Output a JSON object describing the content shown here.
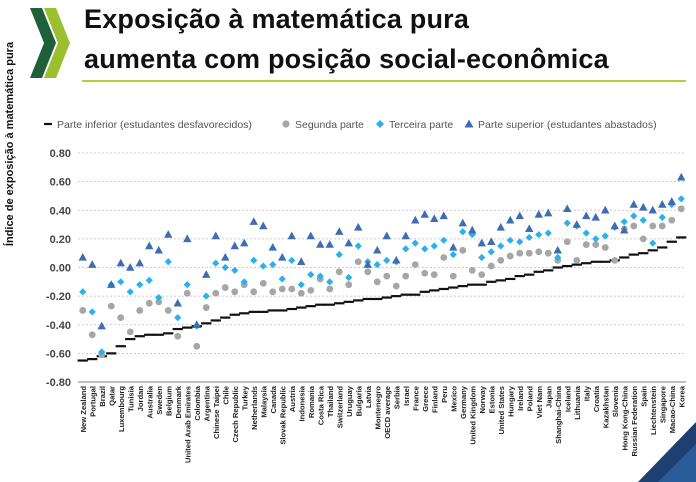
{
  "slide": {
    "title_line1": "Exposição à matemática pura",
    "title_line2": "aumenta com posição social-econômica",
    "accent_color": "#b9cf3a",
    "logo_icon": "oecd-chevrons-icon"
  },
  "chart_data": {
    "type": "scatter",
    "title": "Exposição à matemática pura aumenta com posição social-econômica",
    "xlabel": "",
    "ylabel": "Índice de exposição à matemática pura",
    "ylim": [
      -0.8,
      0.8
    ],
    "yticks": [
      "0.80",
      "0.60",
      "0.40",
      "0.20",
      "0.00",
      "-0.20",
      "-0.40",
      "-0.60",
      "-0.80"
    ],
    "grid": true,
    "legend": [
      {
        "name": "Parte inferior (estudantes desfavorecidos)",
        "marker": "dash",
        "color": "#111111"
      },
      {
        "name": "Segunda parte",
        "marker": "circle",
        "color": "#a6a6a6"
      },
      {
        "name": "Terceira parte",
        "marker": "diamond",
        "color": "#2ab0ec"
      },
      {
        "name": "Parte superior (estudantes abastados)",
        "marker": "triangle",
        "color": "#3e6db2"
      }
    ],
    "categories": [
      "New Zealand",
      "Portugal",
      "Brazil",
      "Qatar",
      "Luxembourg",
      "Tunisia",
      "Jordan",
      "Australia",
      "Sweden",
      "Belgium",
      "Denmark",
      "United Arab Emirates",
      "Colombia",
      "Argentina",
      "Chinese Taipei",
      "Chile",
      "Czech Republic",
      "Turkey",
      "Netherlands",
      "Malaysia",
      "Canada",
      "Slovak Republic",
      "Austria",
      "Indonesia",
      "Romania",
      "Costa Rica",
      "Thailand",
      "Switzerland",
      "Uruguay",
      "Bulgaria",
      "Latvia",
      "Montenegro",
      "OECD average",
      "Serbia",
      "Israel",
      "France",
      "Greece",
      "Finland",
      "Peru",
      "Mexico",
      "Germany",
      "United Kingdom",
      "Norway",
      "Estonia",
      "United States",
      "Hungary",
      "Ireland",
      "Poland",
      "Viet Nam",
      "Japan",
      "Shanghai-China",
      "Iceland",
      "Lithuania",
      "Italy",
      "Croatia",
      "Kazakhstan",
      "Slovenia",
      "Hong Kong-China",
      "Russian Federation",
      "Spain",
      "Liechtenstein",
      "Singapore",
      "Macao-China",
      "Korea"
    ],
    "series": [
      {
        "name": "Parte inferior (estudantes desfavorecidos)",
        "values": [
          -0.65,
          -0.64,
          -0.62,
          -0.6,
          -0.55,
          -0.5,
          -0.48,
          -0.47,
          -0.47,
          -0.46,
          -0.43,
          -0.42,
          -0.41,
          -0.39,
          -0.37,
          -0.35,
          -0.33,
          -0.32,
          -0.31,
          -0.31,
          -0.3,
          -0.3,
          -0.29,
          -0.28,
          -0.27,
          -0.26,
          -0.26,
          -0.25,
          -0.24,
          -0.23,
          -0.22,
          -0.22,
          -0.21,
          -0.2,
          -0.19,
          -0.19,
          -0.17,
          -0.16,
          -0.15,
          -0.14,
          -0.13,
          -0.12,
          -0.12,
          -0.1,
          -0.09,
          -0.08,
          -0.06,
          -0.05,
          -0.03,
          -0.02,
          0.0,
          0.01,
          0.02,
          0.03,
          0.04,
          0.04,
          0.05,
          0.07,
          0.09,
          0.1,
          0.12,
          0.14,
          0.18,
          0.21
        ]
      },
      {
        "name": "Segunda parte",
        "values": [
          -0.3,
          -0.47,
          -0.61,
          -0.27,
          -0.35,
          -0.45,
          -0.3,
          -0.25,
          -0.24,
          -0.3,
          -0.48,
          -0.18,
          -0.55,
          -0.28,
          -0.18,
          -0.14,
          -0.17,
          -0.12,
          -0.17,
          -0.11,
          -0.17,
          -0.15,
          -0.15,
          -0.18,
          -0.16,
          -0.08,
          -0.15,
          -0.03,
          -0.12,
          0.04,
          -0.03,
          -0.1,
          -0.06,
          -0.13,
          -0.06,
          0.02,
          -0.04,
          -0.05,
          0.07,
          -0.06,
          0.12,
          -0.02,
          -0.05,
          0.01,
          0.05,
          0.08,
          0.1,
          0.1,
          0.11,
          0.1,
          0.05,
          0.18,
          0.05,
          0.16,
          0.16,
          0.14,
          0.05,
          0.27,
          0.29,
          0.2,
          0.29,
          0.29,
          0.33,
          0.41
        ]
      },
      {
        "name": "Terceira parte",
        "values": [
          -0.17,
          -0.31,
          -0.59,
          -0.12,
          -0.1,
          -0.17,
          -0.12,
          -0.09,
          -0.21,
          0.04,
          -0.35,
          -0.12,
          -0.41,
          -0.2,
          0.03,
          0.0,
          -0.02,
          -0.1,
          0.05,
          0.01,
          0.02,
          -0.08,
          0.05,
          -0.12,
          -0.05,
          -0.06,
          -0.1,
          0.09,
          -0.07,
          0.15,
          0.04,
          0.02,
          0.05,
          0.04,
          0.13,
          0.17,
          0.13,
          0.15,
          0.19,
          0.09,
          0.25,
          0.23,
          0.07,
          0.11,
          0.15,
          0.19,
          0.18,
          0.21,
          0.23,
          0.24,
          0.07,
          0.31,
          0.29,
          0.24,
          0.2,
          0.22,
          0.28,
          0.32,
          0.36,
          0.33,
          0.17,
          0.35,
          0.44,
          0.48
        ]
      },
      {
        "name": "Parte superior (estudantes abastados)",
        "values": [
          0.07,
          0.02,
          -0.41,
          -0.12,
          0.03,
          0.0,
          0.03,
          0.15,
          0.12,
          0.23,
          -0.25,
          0.2,
          -0.4,
          -0.05,
          0.22,
          0.07,
          0.15,
          0.17,
          0.32,
          0.29,
          0.14,
          0.07,
          0.22,
          0.04,
          0.22,
          0.16,
          0.16,
          0.25,
          0.17,
          0.28,
          0.02,
          0.12,
          0.22,
          0.05,
          0.22,
          0.33,
          0.37,
          0.34,
          0.36,
          0.14,
          0.31,
          0.26,
          0.17,
          0.18,
          0.28,
          0.33,
          0.36,
          0.27,
          0.37,
          0.38,
          0.12,
          0.41,
          0.3,
          0.36,
          0.35,
          0.4,
          0.29,
          0.26,
          0.44,
          0.42,
          0.4,
          0.44,
          0.46,
          0.63
        ]
      }
    ]
  }
}
